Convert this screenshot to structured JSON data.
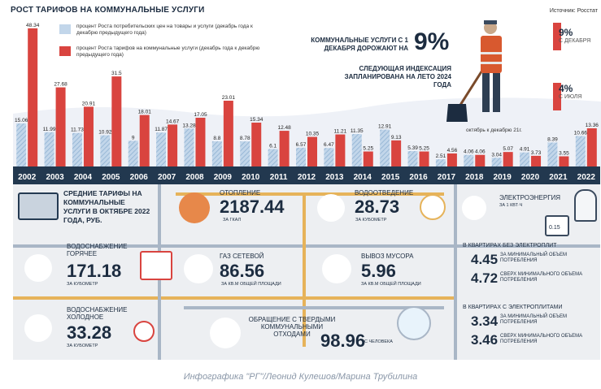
{
  "header": {
    "title": "РОСТ ТАРИФОВ НА КОММУНАЛЬНЫЕ УСЛУГИ",
    "source": "Источник: Росстат"
  },
  "legend": [
    {
      "text": "процент Роста потребительских цен на товары и услуги (декабрь года к декабрю предыдущего года)",
      "color": "#a8c3dd"
    },
    {
      "text": "процент Роста тарифов на коммунальные услуги (декабрь года к декабрю предыдущего года)",
      "color": "#d9443f"
    }
  ],
  "headline": {
    "text": "КОММУНАЛЬНЫЕ УСЛУГИ С 1 ДЕКАБРЯ ДОРОЖАЮТ НА",
    "value": "9%",
    "sub": "СЛЕДУЮЩАЯ ИНДЕКСАЦИЯ ЗАПЛАНИРОВАНА НА ЛЕТО 2024 ГОДА"
  },
  "side": {
    "v1": "9%",
    "l1": "С ДЕКАБРЯ",
    "v2": "4%",
    "l2": "С ИЮЛЯ",
    "oct_label": "октябрь к декабрю 21г.",
    "oct_value": "10.66",
    "v2023": "13.36"
  },
  "chart_data": {
    "type": "bar",
    "categories": [
      "2002",
      "2003",
      "2004",
      "2005",
      "2006",
      "2007",
      "2008",
      "2009",
      "2010",
      "2011",
      "2012",
      "2013",
      "2014",
      "2015",
      "2016",
      "2017",
      "2018",
      "2019",
      "2020",
      "2021",
      "2022"
    ],
    "series": [
      {
        "name": "процент Роста потребительских цен на товары и услуги",
        "values": [
          15.06,
          11.99,
          11.73,
          10.92,
          9,
          11.87,
          13.28,
          8.8,
          8.78,
          6.1,
          6.57,
          6.47,
          11.35,
          12.91,
          5.39,
          2.51,
          4.06,
          3.04,
          4.91,
          8.39,
          10.66
        ]
      },
      {
        "name": "процент Роста тарифов на коммунальные услуги",
        "values": [
          48.34,
          27.68,
          20.91,
          31.5,
          18.01,
          14.67,
          17.05,
          23.01,
          15.34,
          12.48,
          10.35,
          11.21,
          5.25,
          9.13,
          5.25,
          4.56,
          4.06,
          5.07,
          3.73,
          3.55,
          13.36
        ]
      }
    ],
    "ylim": [
      0,
      50
    ]
  },
  "tariffs": {
    "heading": "СРЕДНИЕ ТАРИФЫ НА КОММУНАЛЬНЫЕ УСЛУГИ В ОКТЯБРЕ 2022 ГОДА, РУБ.",
    "heating": {
      "label": "ОТОПЛЕНИЕ",
      "value": "2187.44",
      "unit": "ЗА ГКАЛ"
    },
    "drainage": {
      "label": "ВОДООТВЕДЕНИЕ",
      "value": "28.73",
      "unit": "ЗА КУБОМЕТР"
    },
    "hot_water": {
      "label": "ВОДОСНАБЖЕНИЕ ГОРЯЧЕЕ",
      "value": "171.18",
      "unit": "ЗА КУБОМЕТР"
    },
    "gas": {
      "label": "ГАЗ СЕТЕВОЙ",
      "value": "86.56",
      "unit": "ЗА КВ.М ОБЩЕЙ ПЛОЩАДИ"
    },
    "garbage": {
      "label": "ВЫВОЗ МУСОРА",
      "value": "5.96",
      "unit": "ЗА КВ.М ОБЩЕЙ ПЛОЩАДИ"
    },
    "cold_water": {
      "label": "ВОДОСНАБЖЕНИЕ ХОЛОДНОЕ",
      "value": "33.28",
      "unit": "ЗА КУБОМЕТР"
    },
    "waste": {
      "label": "ОБРАЩЕНИЕ С ТВЕРДЫМИ КОММУНАЛЬНЫМИ ОТХОДАМИ",
      "value": "98.96",
      "unit": "С ЧЕЛОВЕКА"
    },
    "electricity": {
      "label": "ЭЛЕКТРОЭНЕРГИЯ",
      "unit": "ЗА 1 КВТ·Ч",
      "meter": "0.15",
      "no_stoves": {
        "title": "В КВАРТИРАХ БЕЗ ЭЛЕКТРОПЛИТ",
        "v1": "4.45",
        "l1": "ЗА МИНИМАЛЬНЫЙ ОБЪЕМ ПОТРЕБЛЕНИЯ",
        "v2": "4.72",
        "l2": "СВЕРХ МИНИМАЛЬНОГО ОБЪЕМА ПОТРЕБЛЕНИЯ"
      },
      "stoves": {
        "title": "В КВАРТИРАХ С ЭЛЕКТРОПЛИТАМИ",
        "v1": "3.34",
        "l1": "ЗА МИНИМАЛЬНЫЙ ОБЪЕМ ПОТРЕБЛЕНИЯ",
        "v2": "3.46",
        "l2": "СВЕРХ МИНИМАЛЬНОГО ОБЪЕМА ПОТРЕБЛЕНИЯ"
      }
    }
  },
  "caption": "Инфографика \"РГ\"/Леонид Кулешов/Марина Трубилина"
}
